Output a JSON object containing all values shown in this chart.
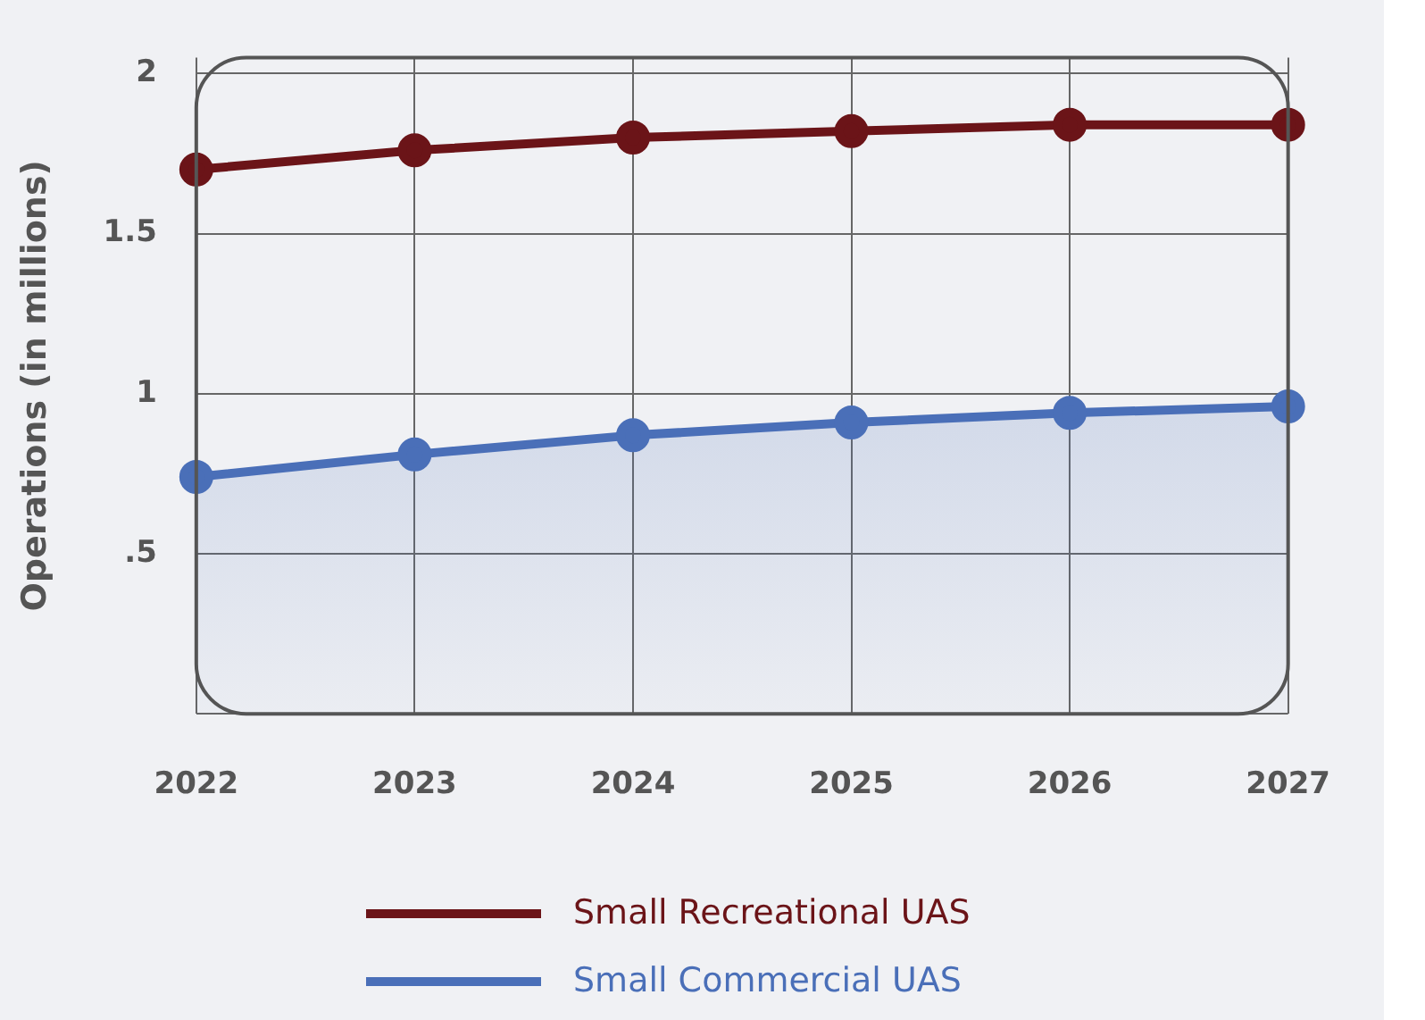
{
  "chart_data": {
    "type": "line",
    "ylabel": "Operations (in millions)",
    "categories": [
      "2022",
      "2023",
      "2024",
      "2025",
      "2026",
      "2027"
    ],
    "series": [
      {
        "name": "Small Recreational UAS",
        "color": "#6b1418",
        "values": [
          1.7,
          1.76,
          1.8,
          1.82,
          1.84,
          1.84
        ]
      },
      {
        "name": "Small Commercial UAS",
        "type": "area",
        "color": "#4a6fb8",
        "values": [
          0.74,
          0.81,
          0.87,
          0.91,
          0.94,
          0.96
        ]
      }
    ],
    "ylim": [
      0,
      2.05
    ],
    "yticks": [
      {
        "value": 0,
        "label": null
      },
      {
        "value": 0.5,
        "label": ".5"
      },
      1,
      1.5,
      2
    ],
    "grid": true,
    "legend": "bottom",
    "marker": "circle"
  }
}
